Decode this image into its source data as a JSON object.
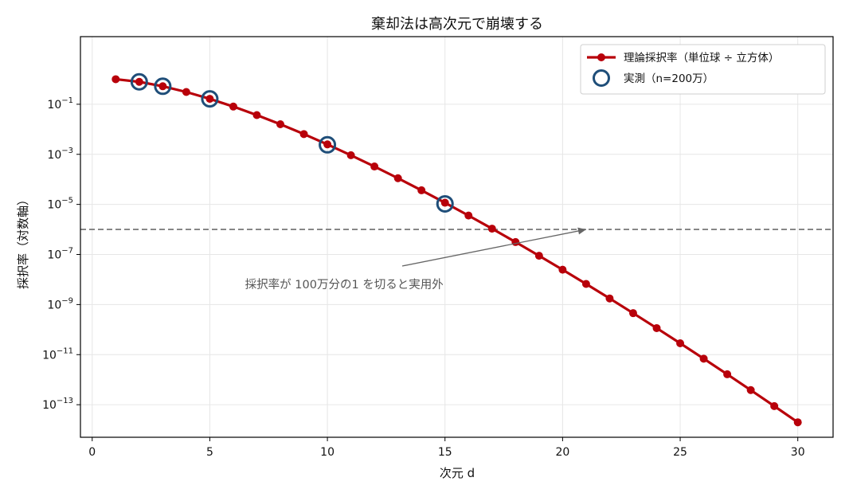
{
  "chart_data": {
    "type": "line",
    "title": "棄却法は高次元で崩壊する",
    "xlabel": "次元 d",
    "ylabel": "採択率（対数軸）",
    "xlim": [
      -0.5,
      31.5
    ],
    "x_ticks": [
      0,
      5,
      10,
      15,
      20,
      25,
      30
    ],
    "y_log": true,
    "ylim_log10": [
      -14.3,
      1.7
    ],
    "y_tick_exponents": [
      -1,
      -3,
      -5,
      -7,
      -9,
      -11,
      -13
    ],
    "grid": true,
    "legend_position": "top-right",
    "threshold": {
      "value": 1e-06,
      "style": "dashed",
      "color": "#808080"
    },
    "annotation": {
      "text": "採択率が 100万分の1 を切ると実用外",
      "text_x": 6.6,
      "text_y_log10": -8.35,
      "arrow_to_x": 21,
      "arrow_to_y_log10": -6.0
    },
    "series": [
      {
        "name": "理論採択率（単位球 ÷ 立方体）",
        "kind": "line",
        "color": "#b8000a",
        "x": [
          1,
          2,
          3,
          4,
          5,
          6,
          7,
          8,
          9,
          10,
          11,
          12,
          13,
          14,
          15,
          16,
          17,
          18,
          19,
          20,
          21,
          22,
          23,
          24,
          25,
          26,
          27,
          28,
          29,
          30
        ],
        "y": [
          1,
          0.785398,
          0.523599,
          0.308425,
          0.164493,
          0.080746,
          0.036912,
          0.015854,
          0.0064424,
          0.0024904,
          0.00091997,
          0.00032599,
          0.00011116,
          3.6576e-05,
          1.1641e-05,
          3.5908e-06,
          1.0756e-06,
          3.1336e-07,
          8.8923e-08,
          2.4611e-08,
          6.6514e-09,
          1.7565e-09,
          4.5371e-10,
          1.1471e-10,
          2.8409e-11,
          6.8966e-12,
          1.6422e-12,
          3.8379e-13,
          8.8063e-14,
          1.9853e-14
        ]
      },
      {
        "name": "実測（n=200万）",
        "kind": "scatter",
        "color": "#1f4e79",
        "x": [
          2,
          3,
          5,
          10,
          15
        ],
        "y": [
          0.7855,
          0.5233,
          0.1643,
          0.0024,
          1.05e-05
        ]
      }
    ]
  }
}
